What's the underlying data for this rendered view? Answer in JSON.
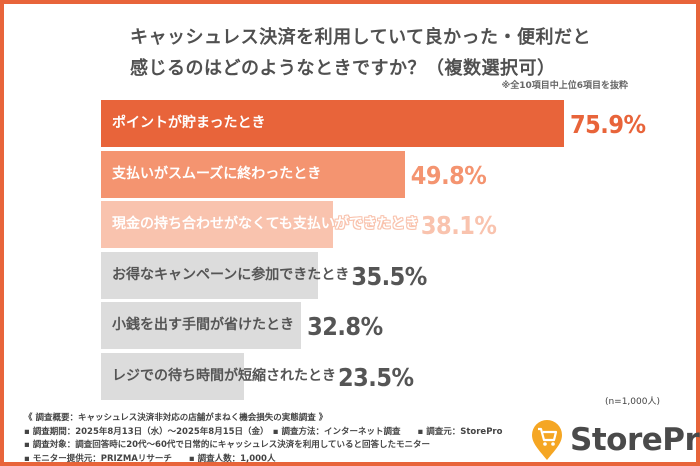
{
  "title_line1": "キャッシュレス決済を利用していて良かった・便利だと",
  "title_line2": "感じるのはどのようなときですか？（複数選択可）",
  "note": "※全10項目中上位6項目を抜粋",
  "sample": "(n=1,000人)",
  "chart_data": {
    "type": "bar",
    "orientation": "horizontal",
    "title": "キャッシュレス決済を利用していて良かった・便利だと感じるのはどのようなときですか？（複数選択可）",
    "categories": [
      "ポイントが貯まったとき",
      "支払いがスムーズに終わったとき",
      "現金の持ち合わせがなくても支払いができたとき",
      "お得なキャンペーンに参加できたとき",
      "小銭を出す手間が省けたとき",
      "レジでの待ち時間が短縮されたとき"
    ],
    "values": [
      75.9,
      49.8,
      38.1,
      35.5,
      32.8,
      23.5
    ],
    "value_labels": [
      "75.9%",
      "49.8%",
      "38.1%",
      "35.5%",
      "32.8%",
      "23.5%"
    ],
    "colors": [
      "#E8643A",
      "#F49470",
      "#F9C3AE",
      "#DCDCDC",
      "#DCDCDC",
      "#DCDCDC"
    ],
    "value_colors": [
      "#E8643A",
      "#F49470",
      "#F9C3AE",
      "#555555",
      "#555555",
      "#555555"
    ],
    "unit": "%",
    "grid": false
  },
  "footer": {
    "line1": "《 調査概要：キャッシュレス決済非対応の店舗がまねく機会損失の実態調査 》",
    "line2": "▪ 調査期間：2025年8月13日（水）～2025年8月15日（金）　▪ 調査方法：インターネット調査　　▪ 調査元：StorePro",
    "line3": "▪ 調査対象：調査回答時に20代～60代で日常的にキャッシュレス決済を利用していると回答したモニター",
    "line4": "▪ モニター提供元：PRIZMAリサーチ　　▪ 調査人数：1,000人"
  },
  "logo": {
    "text": "StorePro",
    "icon": "shopping-cart-pin-icon",
    "color": "#F5A623"
  }
}
